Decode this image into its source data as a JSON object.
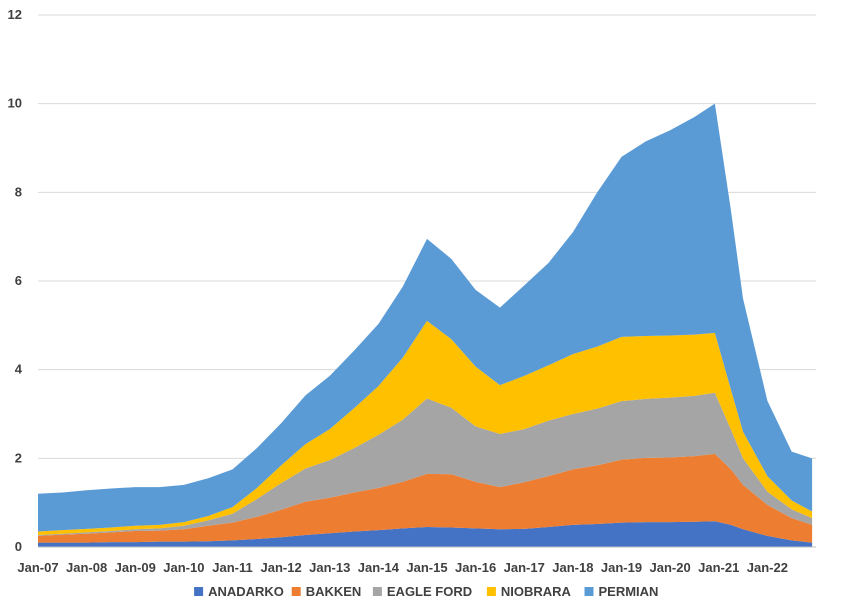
{
  "chart_data": {
    "type": "area",
    "stacked": true,
    "title": "",
    "xlabel": "",
    "ylabel": "",
    "ylim": [
      0,
      12
    ],
    "y_ticks": [
      "0",
      "2",
      "4",
      "6",
      "8",
      "10",
      "12"
    ],
    "x_ticks": [
      "Jan-07",
      "Jan-08",
      "Jan-09",
      "Jan-10",
      "Jan-11",
      "Jan-12",
      "Jan-13",
      "Jan-14",
      "Jan-15",
      "Jan-16",
      "Jan-17",
      "Jan-18",
      "Jan-19",
      "Jan-20",
      "Jan-21",
      "Jan-22"
    ],
    "grid": true,
    "legend_position": "bottom",
    "x": [
      2007.0,
      2007.5,
      2008.0,
      2008.5,
      2009.0,
      2009.5,
      2010.0,
      2010.5,
      2011.0,
      2011.5,
      2012.0,
      2012.5,
      2013.0,
      2013.5,
      2014.0,
      2014.5,
      2015.0,
      2015.5,
      2016.0,
      2016.5,
      2017.0,
      2017.5,
      2018.0,
      2018.5,
      2019.0,
      2019.5,
      2020.0,
      2020.5,
      2020.92,
      2021.25,
      2021.5,
      2022.0,
      2022.5,
      2022.92
    ],
    "x_tick_values": [
      2007,
      2008,
      2009,
      2010,
      2011,
      2012,
      2013,
      2014,
      2015,
      2016,
      2017,
      2018,
      2019,
      2020,
      2021,
      2022
    ],
    "series": [
      {
        "name": "ANADARKO",
        "color": "#4472C4",
        "values": [
          0.1,
          0.1,
          0.1,
          0.11,
          0.11,
          0.12,
          0.12,
          0.13,
          0.15,
          0.18,
          0.22,
          0.27,
          0.31,
          0.35,
          0.38,
          0.42,
          0.45,
          0.44,
          0.42,
          0.4,
          0.41,
          0.45,
          0.5,
          0.52,
          0.55,
          0.56,
          0.56,
          0.57,
          0.58,
          0.5,
          0.4,
          0.25,
          0.15,
          0.1
        ]
      },
      {
        "name": "BAKKEN",
        "color": "#ED7D31",
        "values": [
          0.15,
          0.18,
          0.2,
          0.22,
          0.25,
          0.25,
          0.28,
          0.35,
          0.4,
          0.5,
          0.62,
          0.75,
          0.8,
          0.88,
          0.95,
          1.05,
          1.2,
          1.2,
          1.05,
          0.95,
          1.05,
          1.15,
          1.25,
          1.32,
          1.42,
          1.45,
          1.46,
          1.48,
          1.52,
          1.25,
          1.0,
          0.7,
          0.5,
          0.4
        ]
      },
      {
        "name": "EAGLE FORD",
        "color": "#A5A5A5",
        "values": [
          0.02,
          0.02,
          0.03,
          0.03,
          0.04,
          0.05,
          0.08,
          0.12,
          0.2,
          0.4,
          0.6,
          0.75,
          0.85,
          1.0,
          1.2,
          1.4,
          1.7,
          1.5,
          1.25,
          1.2,
          1.2,
          1.25,
          1.25,
          1.28,
          1.32,
          1.33,
          1.35,
          1.36,
          1.38,
          0.9,
          0.6,
          0.3,
          0.2,
          0.15
        ]
      },
      {
        "name": "NIOBRARA",
        "color": "#FFC000",
        "values": [
          0.08,
          0.08,
          0.08,
          0.08,
          0.08,
          0.08,
          0.08,
          0.1,
          0.15,
          0.25,
          0.4,
          0.55,
          0.7,
          0.9,
          1.1,
          1.4,
          1.75,
          1.55,
          1.35,
          1.1,
          1.2,
          1.25,
          1.35,
          1.4,
          1.45,
          1.42,
          1.4,
          1.38,
          1.35,
          0.9,
          0.6,
          0.35,
          0.2,
          0.15
        ]
      },
      {
        "name": "PERMIAN",
        "color": "#5B9BD5",
        "values": [
          0.85,
          0.85,
          0.87,
          0.88,
          0.87,
          0.85,
          0.84,
          0.85,
          0.85,
          0.9,
          0.95,
          1.1,
          1.2,
          1.3,
          1.4,
          1.6,
          1.85,
          1.81,
          1.73,
          1.75,
          2.04,
          2.31,
          2.75,
          3.48,
          4.06,
          4.39,
          4.63,
          4.91,
          5.17,
          4.05,
          3.0,
          1.7,
          1.1,
          1.2
        ]
      }
    ]
  }
}
